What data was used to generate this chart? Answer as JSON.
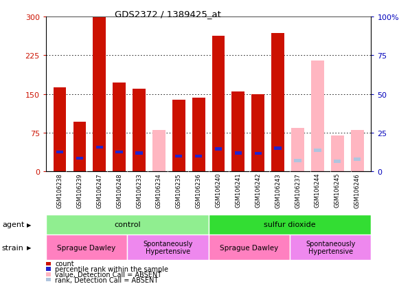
{
  "title": "GDS2372 / 1389425_at",
  "samples": [
    "GSM106238",
    "GSM106239",
    "GSM106247",
    "GSM106248",
    "GSM106233",
    "GSM106234",
    "GSM106235",
    "GSM106236",
    "GSM106240",
    "GSM106241",
    "GSM106242",
    "GSM106243",
    "GSM106237",
    "GSM106244",
    "GSM106245",
    "GSM106246"
  ],
  "count_values": [
    163,
    97,
    299,
    172,
    160,
    0,
    139,
    143,
    263,
    155,
    150,
    268,
    0,
    0,
    0,
    0
  ],
  "rank_values": [
    38,
    26,
    47,
    38,
    36,
    0,
    30,
    30,
    44,
    36,
    35,
    45,
    0,
    0,
    0,
    0
  ],
  "absent_count_values": [
    0,
    0,
    0,
    0,
    0,
    80,
    0,
    0,
    0,
    0,
    0,
    0,
    85,
    215,
    70,
    80
  ],
  "absent_rank_values": [
    0,
    0,
    0,
    0,
    0,
    0,
    0,
    0,
    0,
    0,
    0,
    0,
    21,
    41,
    20,
    24
  ],
  "ylim_left": [
    0,
    300
  ],
  "ylim_right": [
    0,
    100
  ],
  "yticks_left": [
    0,
    75,
    150,
    225,
    300
  ],
  "yticks_right": [
    0,
    25,
    50,
    75,
    100
  ],
  "yticklabels_left": [
    "0",
    "75",
    "150",
    "225",
    "300"
  ],
  "yticklabels_right": [
    "0",
    "25",
    "50",
    "75",
    "100%"
  ],
  "count_color": "#CC1100",
  "rank_color": "#2222CC",
  "absent_count_color": "#FFB6C1",
  "absent_rank_color": "#B0C4DE",
  "control_color": "#90EE90",
  "so2_color": "#33DD33",
  "sprague_color": "#FF80C0",
  "hypertensive_color": "#EE88EE",
  "bar_width": 0.65
}
